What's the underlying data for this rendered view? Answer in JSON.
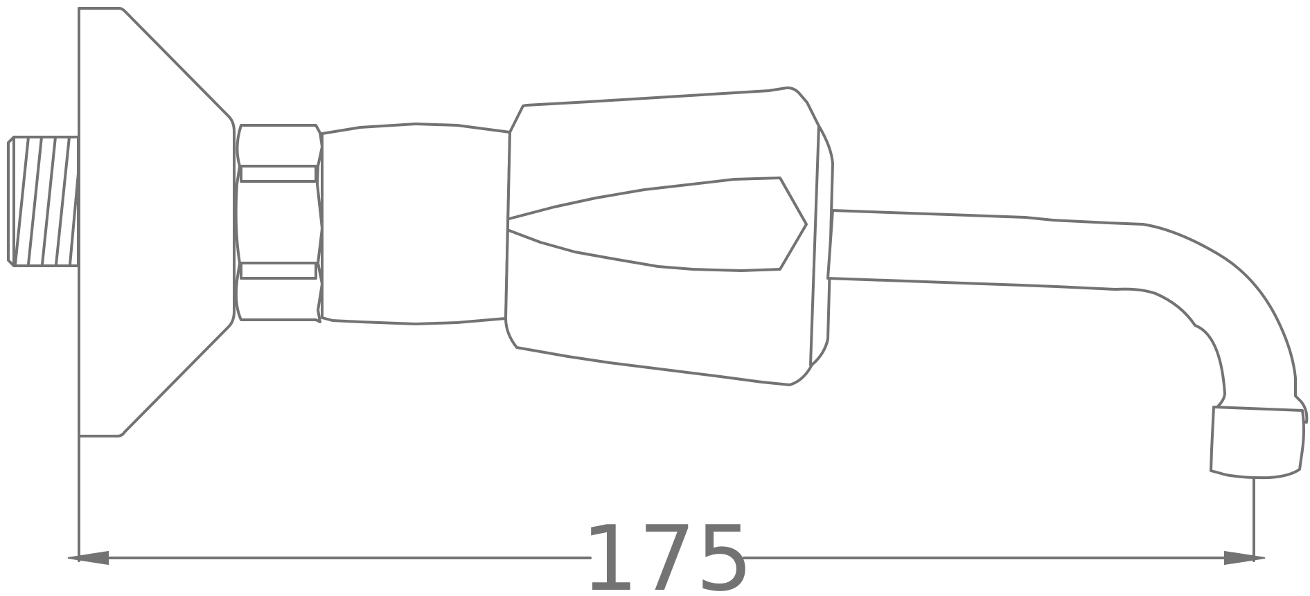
{
  "dimension": {
    "value_label": "175",
    "line_color": "#737373"
  }
}
